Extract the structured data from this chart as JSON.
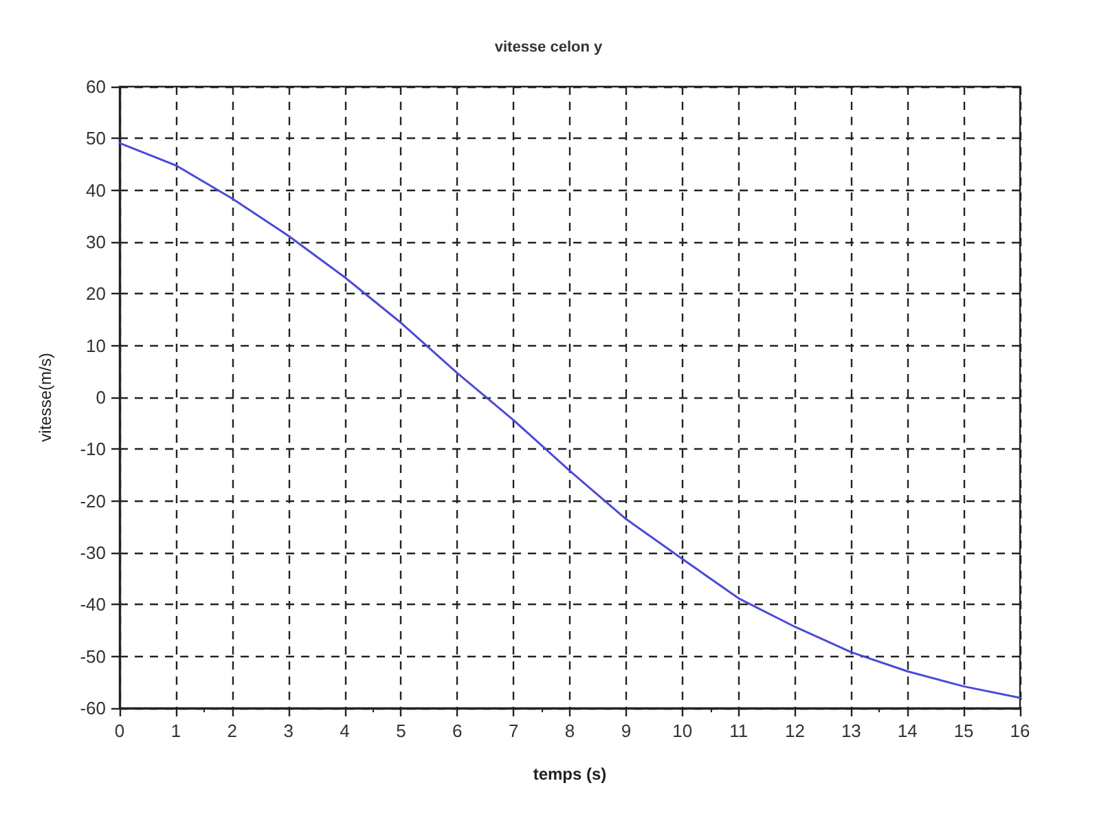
{
  "chart_data": {
    "type": "line",
    "title": "vitesse celon y",
    "xlabel": "temps (s)",
    "ylabel": "vitesse(m/s)",
    "x": [
      0,
      1,
      2,
      3,
      4,
      5,
      6,
      7,
      8,
      9,
      10,
      11,
      12,
      13,
      14,
      15,
      16
    ],
    "series": [
      {
        "color": "#4a4ad8",
        "values": [
          49.1,
          44.8,
          38.4,
          31.2,
          23.2,
          14.4,
          4.7,
          -4.4,
          -14.2,
          -23.5,
          -31.2,
          -38.8,
          -44.3,
          -49.2,
          -52.9,
          -55.8,
          -58
        ]
      }
    ],
    "xlim": [
      0,
      16
    ],
    "xticks": [
      0,
      1,
      2,
      3,
      4,
      5,
      6,
      7,
      8,
      9,
      10,
      11,
      12,
      13,
      14,
      15,
      16
    ],
    "ylim": [
      -60,
      60
    ],
    "yticks": [
      -60,
      -50,
      -40,
      -30,
      -20,
      -10,
      0,
      10,
      20,
      30,
      40,
      50,
      60
    ],
    "grid": true,
    "marker": "none",
    "line_style": "solid"
  }
}
